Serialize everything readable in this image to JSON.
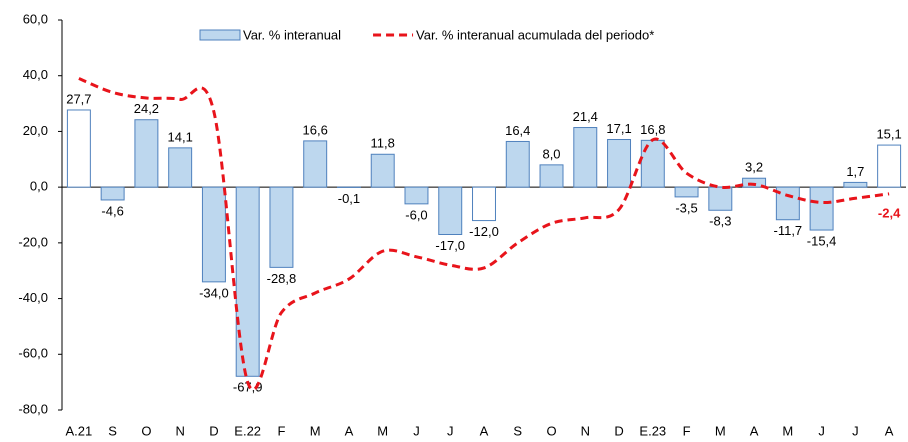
{
  "chart_data": {
    "type": "bar_line",
    "categories": [
      "A.21",
      "S",
      "O",
      "N",
      "D",
      "E.22",
      "F",
      "M",
      "A",
      "M",
      "J",
      "J",
      "A",
      "S",
      "O",
      "N",
      "D",
      "E.23",
      "F",
      "M",
      "A",
      "M",
      "J",
      "J",
      "A"
    ],
    "series": [
      {
        "name": "Var. % interanual",
        "type": "bar",
        "color": "#bdd7ee",
        "edge_color": "#4f81bd",
        "colors": [
          "#ffffff",
          "#bdd7ee",
          "#bdd7ee",
          "#bdd7ee",
          "#bdd7ee",
          "#bdd7ee",
          "#bdd7ee",
          "#bdd7ee",
          "#bdd7ee",
          "#bdd7ee",
          "#bdd7ee",
          "#bdd7ee",
          "#ffffff",
          "#bdd7ee",
          "#bdd7ee",
          "#bdd7ee",
          "#bdd7ee",
          "#bdd7ee",
          "#bdd7ee",
          "#bdd7ee",
          "#bdd7ee",
          "#bdd7ee",
          "#bdd7ee",
          "#bdd7ee",
          "#ffffff"
        ],
        "values": [
          27.7,
          -4.6,
          24.2,
          14.1,
          -34.0,
          -67.9,
          -28.8,
          16.6,
          -0.1,
          11.8,
          -6.0,
          -17.0,
          -12.0,
          16.4,
          8.0,
          21.4,
          17.1,
          16.8,
          -3.5,
          -8.3,
          3.2,
          -11.7,
          -15.4,
          1.7,
          15.1
        ],
        "value_labels": [
          "27,7",
          "-4,6",
          "24,2",
          "14,1",
          "-34,0",
          "-67,9",
          "-28,8",
          "16,6",
          "-0,1",
          "11,8",
          "-6,0",
          "-17,0",
          "-12,0",
          "16,4",
          "8,0",
          "21,4",
          "17,1",
          "16,8",
          "-3,5",
          "-8,3",
          "3,2",
          "-11,7",
          "-15,4",
          "1,7",
          "15,1"
        ]
      },
      {
        "name": "Var. % interanual acumulada del periodo*",
        "type": "line",
        "color": "#e8141b",
        "dashed": true,
        "values": [
          39,
          34,
          32,
          31.5,
          27,
          -70,
          -45,
          -38,
          -33,
          -23,
          -25,
          -28,
          -29,
          -20,
          -13,
          -11,
          -8,
          17,
          5,
          0,
          1,
          -3,
          -5.5,
          -4,
          -2.4
        ],
        "value_labels": [
          null,
          null,
          null,
          null,
          null,
          null,
          null,
          null,
          null,
          null,
          null,
          null,
          null,
          null,
          null,
          null,
          null,
          null,
          null,
          null,
          null,
          null,
          null,
          null,
          "-2,4"
        ]
      }
    ],
    "ylim": [
      -80,
      60
    ],
    "yticks": [
      {
        "value": -80,
        "label": "-80,0"
      },
      {
        "value": -60,
        "label": "-60,0"
      },
      {
        "value": -40,
        "label": "-40,0"
      },
      {
        "value": -20,
        "label": "-20,0"
      },
      {
        "value": 0,
        "label": "0,0"
      },
      {
        "value": 20,
        "label": "20,0"
      },
      {
        "value": 40,
        "label": "40,0"
      },
      {
        "value": 60,
        "label": "60,0"
      }
    ],
    "grid": false,
    "legend": "top"
  }
}
